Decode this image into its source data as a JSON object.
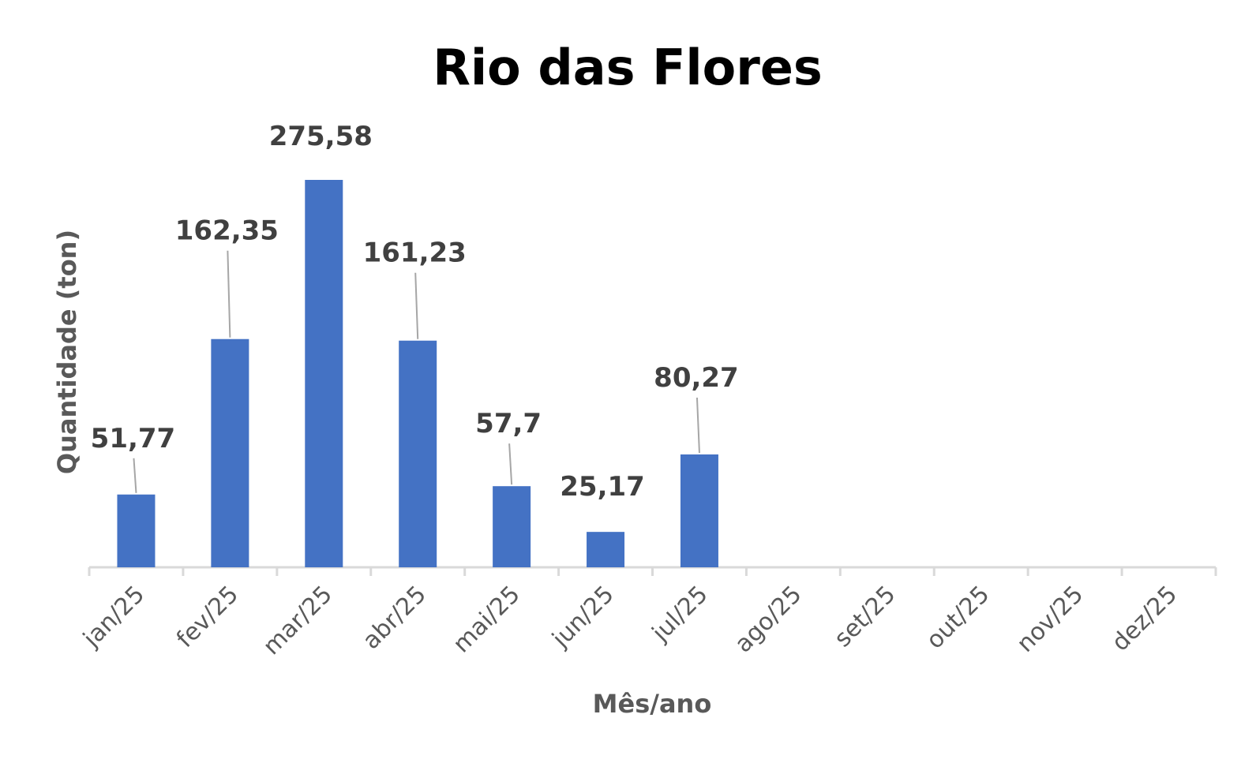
{
  "chart_data": {
    "type": "bar",
    "title": "Rio das Flores",
    "xlabel": "Mês/ano",
    "ylabel": "Quantidade (ton)",
    "categories": [
      "jan/25",
      "fev/25",
      "mar/25",
      "abr/25",
      "mai/25",
      "jun/25",
      "jul/25",
      "ago/25",
      "set/25",
      "out/25",
      "nov/25",
      "dez/25"
    ],
    "values": [
      51.77,
      162.35,
      275.58,
      161.23,
      57.7,
      25.17,
      80.27,
      null,
      null,
      null,
      null,
      null
    ],
    "data_labels": [
      "51,77",
      "162,35",
      "275,58",
      "161,23",
      "57,7",
      "25,17",
      "80,27",
      "",
      "",
      "",
      "",
      ""
    ],
    "ylim": [
      0,
      275.58
    ],
    "grid": false,
    "legend": "none",
    "colors": {
      "bar": "#4472C4",
      "axis": "#D9D9D9",
      "leader_line": "#A6A6A6"
    }
  }
}
